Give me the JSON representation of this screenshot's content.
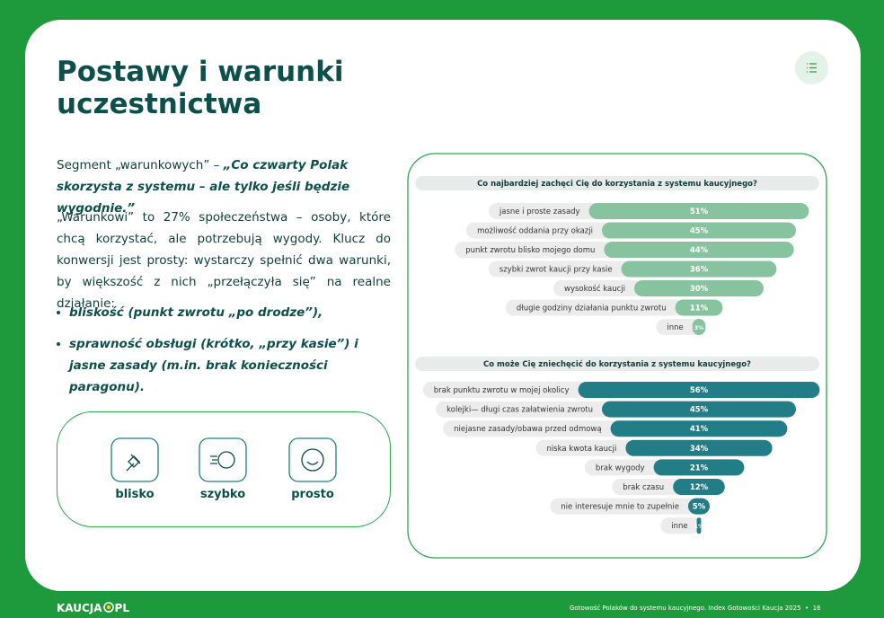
{
  "header": {
    "title": "Postawy i warunki uczestnictwa"
  },
  "intro": {
    "lead": "Segment „warunkowych” – ",
    "quote": "„Co czwarty Polak skorzysta z systemu – ale tylko jeśli będzie wygodnie.”",
    "body": "„Warunkowi” to 27% społeczeństwa – osoby, które chcą korzystać, ale potrzebują wygody. Klucz do konwersji jest prosty: wystarczy spełnić dwa warunki, by większość z nich „przełączyła się” na realne działanie:",
    "bullets": [
      "bliskość (punkt zwrotu „po drodze”),",
      "sprawność obsługi (krótko, „przy kasie”) i jasne zasady (m.in. brak konieczności paragonu)."
    ]
  },
  "features": [
    {
      "label": "blisko"
    },
    {
      "label": "szybko"
    },
    {
      "label": "prosto"
    }
  ],
  "chart_data": [
    {
      "type": "bar",
      "title": "Co najbardziej zachęci Cię do korzystania z systemu kaucyjnego?",
      "color": "#86c39e",
      "categories": [
        "jasne i proste zasady",
        "możliwość oddania przy okazji",
        "punkt zwrotu blisko mojego domu",
        "szybki zwrot kaucji przy kasie",
        "wysokość kaucji",
        "długie godziny działania punktu zwrotu",
        "inne"
      ],
      "values": [
        51,
        45,
        44,
        36,
        30,
        11,
        3
      ],
      "value_labels": [
        "51%",
        "45%",
        "44%",
        "36%",
        "30%",
        "11%",
        "3%"
      ]
    },
    {
      "type": "bar",
      "title": "Co może Cię zniechęcić do korzystania z systemu kaucyjnego?",
      "color": "#237d87",
      "categories": [
        "brak punktu zwrotu w mojej okolicy",
        "kolejki— długi czas załatwienia zwrotu",
        "niejasne zasady/obawa przed odmową",
        "niska kwota kaucji",
        "brak wygody",
        "brak czasu",
        "nie interesuje mnie to zupełnie",
        "inne"
      ],
      "values": [
        56,
        45,
        41,
        34,
        21,
        12,
        5,
        1
      ],
      "value_labels": [
        "56%",
        "45%",
        "41%",
        "34%",
        "21%",
        "12%",
        "5%",
        "1%"
      ]
    }
  ],
  "footer": {
    "logo_left": "KAUCJA",
    "logo_right": "PL",
    "caption": "Gotowość Polaków do systemu kaucyjnego. Index Gotowości Kaucja 2025",
    "page": "16"
  }
}
